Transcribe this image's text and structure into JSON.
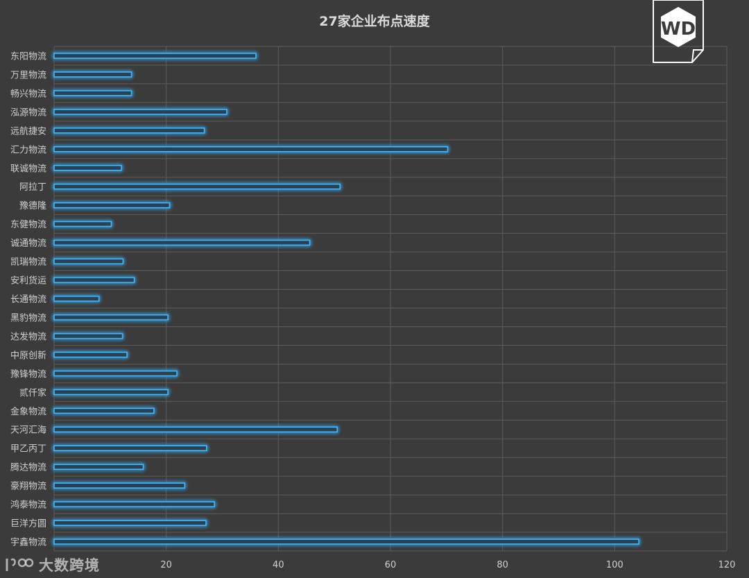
{
  "chart_data": {
    "type": "bar",
    "orientation": "horizontal",
    "title": "27家企业布点速度",
    "xlabel": "",
    "ylabel": "",
    "xlim": [
      0,
      120
    ],
    "x_ticks": [
      "20",
      "40",
      "60",
      "80",
      "100",
      "120"
    ],
    "grid": true,
    "categories": [
      "东阳物流",
      "万里物流",
      "畅兴物流",
      "泓源物流",
      "远航捷安",
      "汇力物流",
      "联诚物流",
      "阿拉丁",
      "豫德隆",
      "东健物流",
      "诚通物流",
      "凯瑞物流",
      "安利货运",
      "长通物流",
      "黑豹物流",
      "达发物流",
      "中原创新",
      "豫锋物流",
      "贰仟家",
      "金象物流",
      "天河汇海",
      "甲乙丙丁",
      "腾达物流",
      "豪翔物流",
      "鸿泰物流",
      "巨洋方圆",
      "宇鑫物流"
    ],
    "values": [
      36,
      13.8,
      13.8,
      30.8,
      26.8,
      70.2,
      12,
      51,
      20.6,
      10.2,
      45.6,
      12.3,
      14.3,
      8,
      20.3,
      12.2,
      13,
      21.9,
      20.3,
      17.8,
      50.5,
      27.2,
      15.9,
      23.3,
      28.6,
      27.1,
      104.3
    ]
  },
  "colors": {
    "background": "#3b3b3b",
    "bar_stroke": "#41b8ff",
    "bar_glow": "#1e90ff",
    "grid": "#5d5d5d",
    "text": "#d0d0d0"
  },
  "logo": {
    "icon": "wd-hexagon-logo-icon",
    "text": "WD"
  },
  "watermark": {
    "icon": "dashu-logo-icon",
    "text": "大数跨境"
  }
}
